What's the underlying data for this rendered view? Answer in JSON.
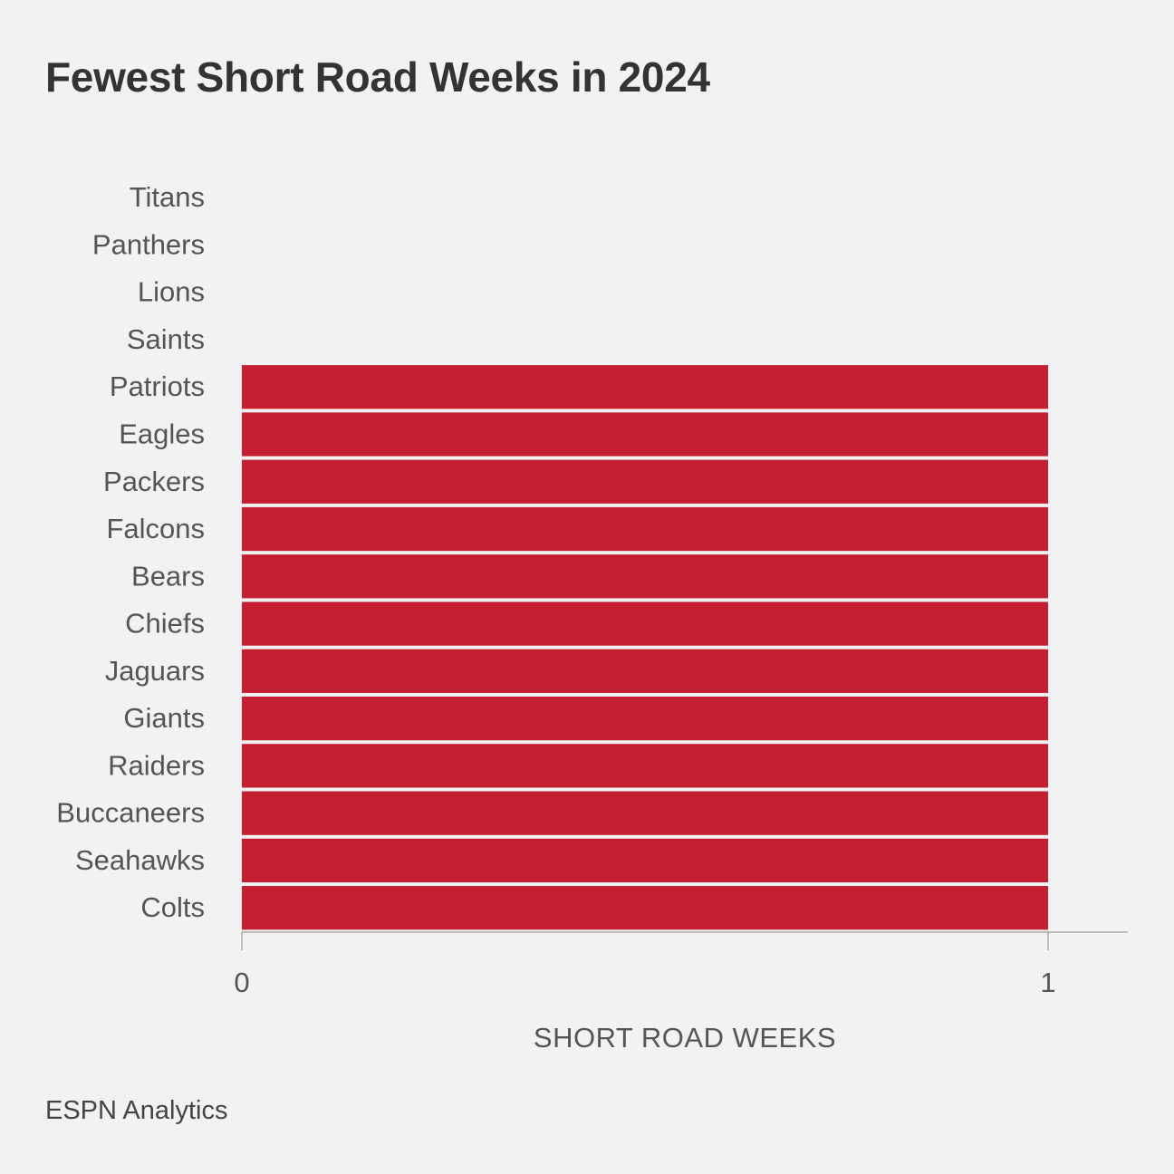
{
  "chart_data": {
    "type": "bar",
    "orientation": "horizontal",
    "title": "Fewest Short Road Weeks in 2024",
    "xlabel": "SHORT ROAD WEEKS",
    "ylabel": "",
    "categories": [
      "Titans",
      "Panthers",
      "Lions",
      "Saints",
      "Patriots",
      "Eagles",
      "Packers",
      "Falcons",
      "Bears",
      "Chiefs",
      "Jaguars",
      "Giants",
      "Raiders",
      "Buccaneers",
      "Seahawks",
      "Colts"
    ],
    "values": [
      0,
      0,
      0,
      0,
      1,
      1,
      1,
      1,
      1,
      1,
      1,
      1,
      1,
      1,
      1,
      1
    ],
    "xlim": [
      0,
      1.1
    ],
    "xticks": [
      0,
      1
    ],
    "grid": false,
    "bar_color": "#c41e30"
  },
  "source": "ESPN Analytics"
}
